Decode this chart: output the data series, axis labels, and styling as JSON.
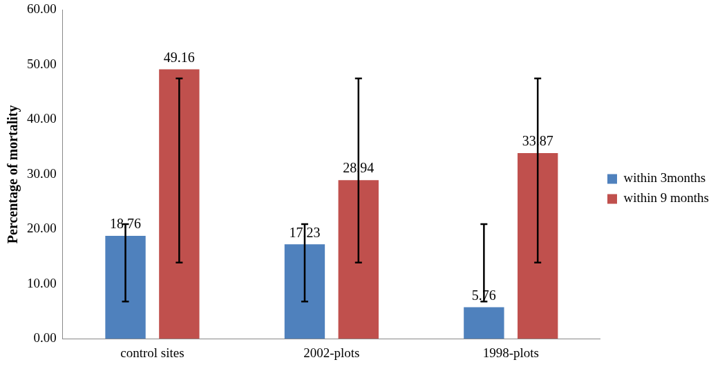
{
  "chart_data": {
    "type": "bar",
    "ylabel": "Percentage of mortality",
    "categories": [
      "control sites",
      "2002-plots",
      "1998-plots"
    ],
    "series": [
      {
        "name": "within 3months",
        "color": "#4f81bd",
        "values": [
          18.76,
          17.23,
          5.76
        ],
        "errors": [
          [
            6.8,
            20.9
          ],
          [
            6.8,
            20.9
          ],
          [
            6.8,
            20.9
          ]
        ]
      },
      {
        "name": "within 9 months",
        "color": "#c0504d",
        "values": [
          49.16,
          28.94,
          33.87
        ],
        "errors": [
          [
            13.9,
            47.5
          ],
          [
            13.9,
            47.5
          ],
          [
            13.9,
            47.5
          ]
        ]
      }
    ],
    "ylim": [
      0,
      60
    ],
    "yticks": [
      {
        "value": 0,
        "label": "0.00"
      },
      {
        "value": 10,
        "label": "10.00"
      },
      {
        "value": 20,
        "label": "20.00"
      },
      {
        "value": 30,
        "label": "30.00"
      },
      {
        "value": 40,
        "label": "40.00"
      },
      {
        "value": 50,
        "label": "50.00"
      },
      {
        "value": 60,
        "label": "60.00"
      }
    ],
    "data_labels": true,
    "grid": false,
    "legend": "right"
  }
}
